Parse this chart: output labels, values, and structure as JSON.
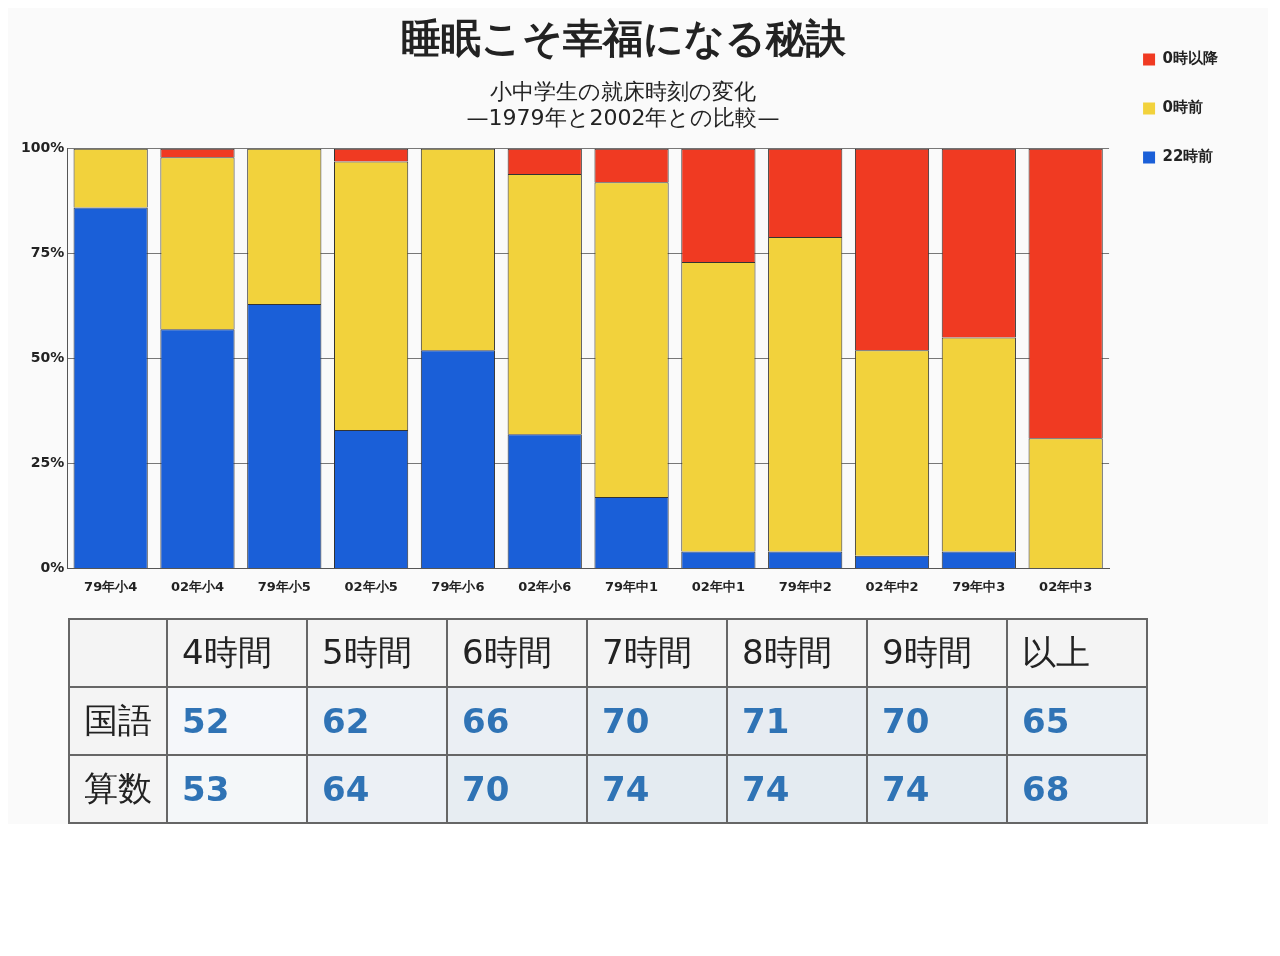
{
  "chart_data": [
    {
      "type": "bar",
      "title": "睡眠こそ幸福になる秘訣",
      "subtitle": "小中学生の就床時刻の変化\n—1979年と2002年との比較—",
      "stacked": true,
      "categories": [
        "79年小4",
        "02年小4",
        "79年小5",
        "02年小5",
        "79年小6",
        "02年小6",
        "79年中1",
        "02年中1",
        "79年中2",
        "02年中2",
        "79年中3",
        "02年中3"
      ],
      "series": [
        {
          "name": "22時前",
          "color": "#1a5fd8",
          "values": [
            86,
            57,
            63,
            33,
            52,
            32,
            17,
            4,
            4,
            3,
            4,
            0
          ]
        },
        {
          "name": "0時前",
          "color": "#f2d23c",
          "values": [
            14,
            41,
            37,
            64,
            48,
            62,
            75,
            69,
            75,
            49,
            51,
            31
          ]
        },
        {
          "name": "0時以降",
          "color": "#f03a22",
          "values": [
            0,
            2,
            0,
            3,
            0,
            6,
            8,
            27,
            21,
            48,
            45,
            69
          ]
        }
      ],
      "ylim": [
        0,
        100
      ],
      "yticks": [
        {
          "value": 0,
          "label": "0%"
        },
        {
          "value": 25,
          "label": "25%"
        },
        {
          "value": 50,
          "label": "50%"
        },
        {
          "value": 75,
          "label": "75%"
        },
        {
          "value": 100,
          "label": "100%"
        }
      ],
      "grid": "y",
      "legend": "right"
    },
    {
      "type": "heatmap",
      "categories": [
        "4時間",
        "5時間",
        "6時間",
        "7時間",
        "8時間",
        "9時間",
        "以上"
      ],
      "y_categories": [
        "国語",
        "算数"
      ],
      "cells": [
        [
          52,
          62,
          66,
          70,
          71,
          70,
          65
        ],
        [
          53,
          64,
          70,
          74,
          74,
          74,
          68
        ]
      ],
      "cell_labels": [
        [
          "52",
          "62",
          "66",
          "70",
          "71",
          "70",
          "65"
        ],
        [
          "53",
          "64",
          "70",
          "74",
          "74",
          "74",
          "68"
        ]
      ]
    }
  ]
}
